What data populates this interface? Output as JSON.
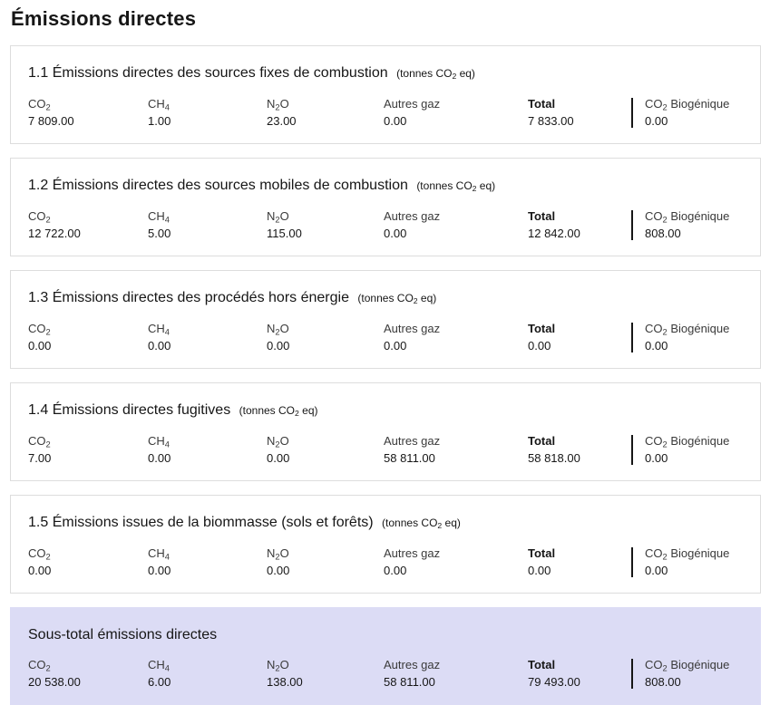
{
  "page": {
    "title": "Émissions directes"
  },
  "columns": {
    "co2": "CO₂",
    "ch4": "CH₄",
    "n2o": "N₂O",
    "autres_gaz": "Autres gaz",
    "total": "Total",
    "co2_biogenique": "CO₂ Biogénique"
  },
  "sections": [
    {
      "title": "1.1 Émissions directes des sources fixes de combustion",
      "unit": "(tonnes CO₂ eq)",
      "values": {
        "co2": "7 809.00",
        "ch4": "1.00",
        "n2o": "23.00",
        "autres_gaz": "0.00",
        "total": "7 833.00",
        "co2_biogenique": "0.00"
      }
    },
    {
      "title": "1.2 Émissions directes des sources mobiles de combustion",
      "unit": "(tonnes CO₂ eq)",
      "values": {
        "co2": "12 722.00",
        "ch4": "5.00",
        "n2o": "115.00",
        "autres_gaz": "0.00",
        "total": "12 842.00",
        "co2_biogenique": "808.00"
      }
    },
    {
      "title": "1.3 Émissions directes des procédés hors énergie",
      "unit": "(tonnes CO₂ eq)",
      "values": {
        "co2": "0.00",
        "ch4": "0.00",
        "n2o": "0.00",
        "autres_gaz": "0.00",
        "total": "0.00",
        "co2_biogenique": "0.00"
      }
    },
    {
      "title": "1.4 Émissions directes fugitives",
      "unit": "(tonnes CO₂ eq)",
      "values": {
        "co2": "7.00",
        "ch4": "0.00",
        "n2o": "0.00",
        "autres_gaz": "58 811.00",
        "total": "58 818.00",
        "co2_biogenique": "0.00"
      }
    },
    {
      "title": "1.5 Émissions issues de la biommasse (sols et forêts)",
      "unit": "(tonnes CO₂ eq)",
      "values": {
        "co2": "0.00",
        "ch4": "0.00",
        "n2o": "0.00",
        "autres_gaz": "0.00",
        "total": "0.00",
        "co2_biogenique": "0.00"
      }
    }
  ],
  "subtotal": {
    "title": "Sous-total émissions directes",
    "values": {
      "co2": "20 538.00",
      "ch4": "6.00",
      "n2o": "138.00",
      "autres_gaz": "58 811.00",
      "total": "79 493.00",
      "co2_biogenique": "808.00"
    }
  },
  "colors": {
    "subtotal_background": "#dcdcf5",
    "card_border": "#dddddd",
    "column_divider": "#161616",
    "header_text": "#3a3a3a",
    "value_text": "#161616"
  }
}
